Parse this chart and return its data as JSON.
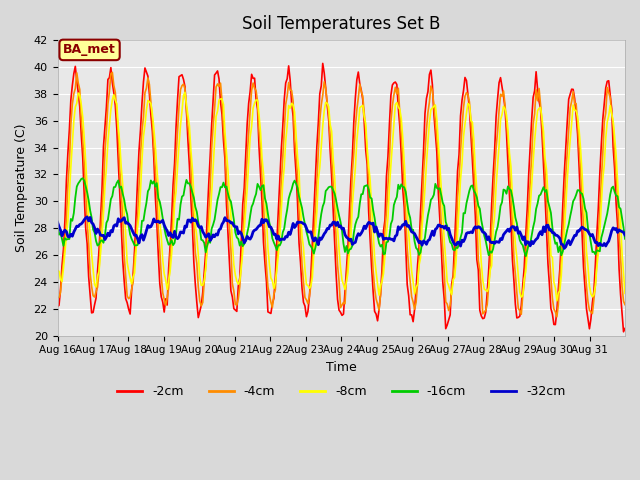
{
  "title": "Soil Temperatures Set B",
  "xlabel": "Time",
  "ylabel": "Soil Temperature (C)",
  "ylim": [
    20,
    42
  ],
  "xtick_labels": [
    "Aug 16",
    "Aug 17",
    "Aug 18",
    "Aug 19",
    "Aug 20",
    "Aug 21",
    "Aug 22",
    "Aug 23",
    "Aug 24",
    "Aug 25",
    "Aug 26",
    "Aug 27",
    "Aug 28",
    "Aug 29",
    "Aug 30",
    "Aug 31"
  ],
  "fig_bg_color": "#d9d9d9",
  "plot_bg_color": "#e8e8e8",
  "legend_label": "BA_met",
  "legend_box_facecolor": "#ffff99",
  "legend_box_edgecolor": "#8b0000",
  "series": [
    {
      "label": "-2cm",
      "color": "#ff0000",
      "lw": 1.2,
      "mean": 31.0,
      "amp": 9.0,
      "phase_extra": 0.0,
      "noise": 0.35,
      "trend": -0.08
    },
    {
      "label": "-4cm",
      "color": "#ff8c00",
      "lw": 1.2,
      "mean": 31.0,
      "amp": 8.2,
      "phase_extra": 0.25,
      "noise": 0.3,
      "trend": -0.08
    },
    {
      "label": "-8cm",
      "color": "#ffff00",
      "lw": 1.2,
      "mean": 31.0,
      "amp": 7.0,
      "phase_extra": 0.55,
      "noise": 0.28,
      "trend": -0.08
    },
    {
      "label": "-16cm",
      "color": "#00cc00",
      "lw": 1.3,
      "mean": 29.2,
      "amp": 2.4,
      "phase_extra": 1.2,
      "noise": 0.2,
      "trend": -0.05
    },
    {
      "label": "-32cm",
      "color": "#0000cc",
      "lw": 2.0,
      "mean": 28.1,
      "amp": 0.65,
      "phase_extra": 2.0,
      "noise": 0.15,
      "trend": -0.05
    }
  ],
  "yticks": [
    20,
    22,
    24,
    26,
    28,
    30,
    32,
    34,
    36,
    38,
    40,
    42
  ],
  "grid_color": "#ffffff",
  "grid_lw": 0.8
}
